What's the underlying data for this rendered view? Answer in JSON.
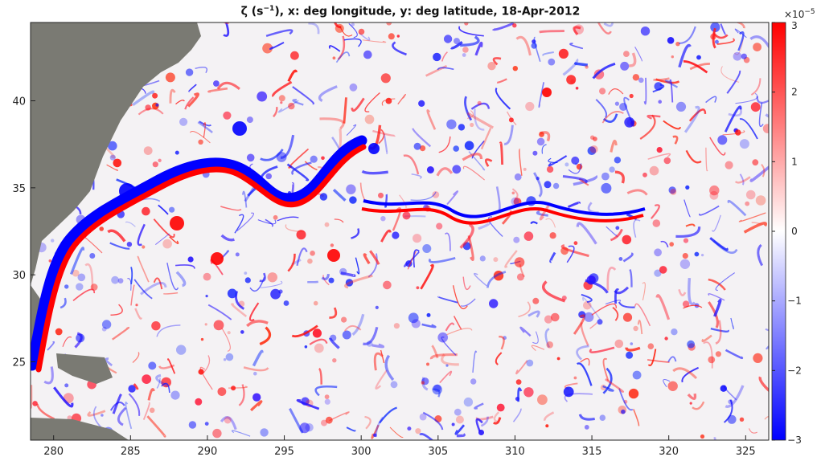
{
  "title": {
    "zeta": "ζ",
    "unit_open": " (s",
    "unit_exp": "−1",
    "unit_close": "),  x: deg longitude,  y: deg latitude,  18-Apr-2012"
  },
  "map": {
    "xlim": [
      278.5,
      326.5
    ],
    "ylim": [
      20.5,
      44.5
    ],
    "x_ticks": [
      "280",
      "285",
      "290",
      "295",
      "300",
      "305",
      "310",
      "315",
      "320",
      "325"
    ],
    "y_ticks": [
      "25",
      "30",
      "35",
      "40"
    ],
    "land_color": "#7a7a73",
    "colormap": {
      "low": "#0000ff",
      "mid": "#ffffff",
      "high": "#ff0000"
    }
  },
  "colorbar": {
    "multiplier": "×10",
    "multiplier_exp": "−5",
    "range": [
      -3,
      3
    ],
    "ticks": [
      "3",
      "2",
      "1",
      "0",
      "−1",
      "−2",
      "−3"
    ]
  }
}
